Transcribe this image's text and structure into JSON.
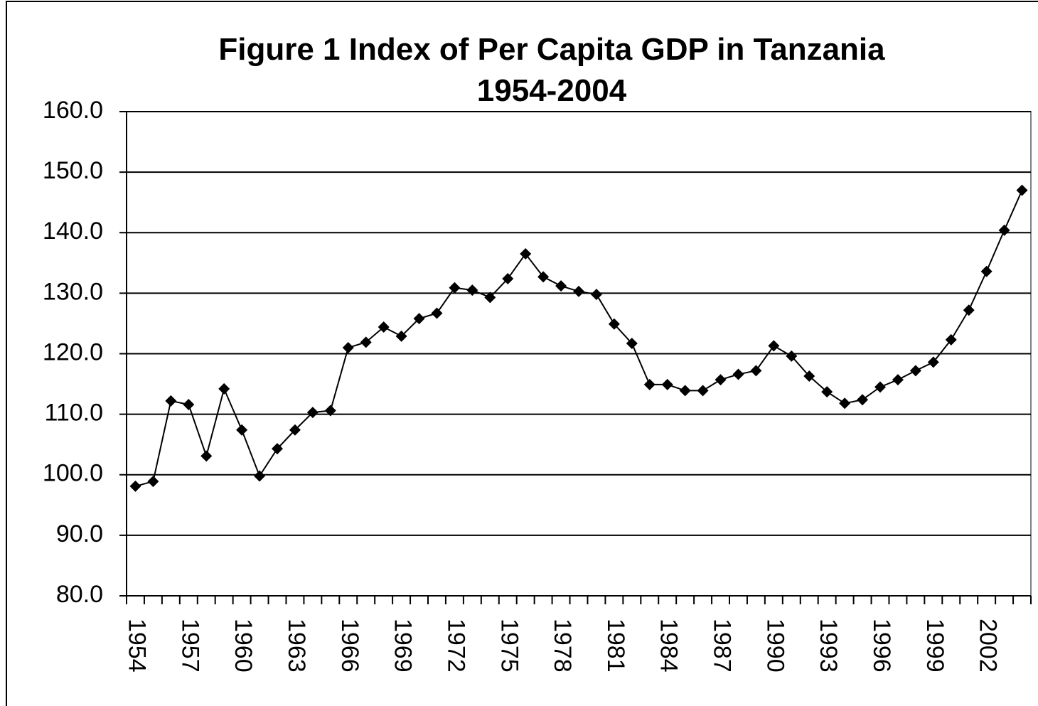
{
  "chart_data": {
    "type": "line",
    "title": [
      "Figure 1 Index of Per Capita GDP in Tanzania",
      "1954-2004"
    ],
    "categories": [
      "1954",
      null,
      null,
      "1957",
      null,
      null,
      "1960",
      null,
      null,
      "1963",
      null,
      null,
      "1966",
      null,
      null,
      "1969",
      null,
      null,
      "1972",
      null,
      null,
      "1975",
      null,
      null,
      "1978",
      null,
      null,
      "1981",
      null,
      null,
      "1984",
      null,
      null,
      "1987",
      null,
      null,
      "1990",
      null,
      null,
      "1993",
      null,
      null,
      "1996",
      null,
      null,
      "1999",
      null,
      null,
      "2002",
      null,
      null
    ],
    "values": [
      98.1,
      98.9,
      112.2,
      111.6,
      103.1,
      114.2,
      107.4,
      99.8,
      104.3,
      107.4,
      110.3,
      110.6,
      121.0,
      121.9,
      124.4,
      122.9,
      125.8,
      126.7,
      130.9,
      130.5,
      129.3,
      132.4,
      136.5,
      132.7,
      131.2,
      130.3,
      129.8,
      124.9,
      121.7,
      114.9,
      114.9,
      113.9,
      113.9,
      115.7,
      116.6,
      117.2,
      121.3,
      119.6,
      116.3,
      113.7,
      111.8,
      112.4,
      114.5,
      115.7,
      117.2,
      118.6,
      122.3,
      127.2,
      133.6,
      140.4,
      147.0
    ],
    "color": "#000000",
    "ylim": [
      80,
      160
    ],
    "yticks": [
      {
        "value": 80,
        "label": "80.0"
      },
      {
        "value": 90,
        "label": "90.0"
      },
      {
        "value": 100,
        "label": "100.0"
      },
      {
        "value": 110,
        "label": "110.0"
      },
      {
        "value": 120,
        "label": "120.0"
      },
      {
        "value": 130,
        "label": "130.0"
      },
      {
        "value": 140,
        "label": "140.0"
      },
      {
        "value": 150,
        "label": "150.0"
      },
      {
        "value": 160,
        "label": "160.0"
      }
    ],
    "grid": true
  }
}
